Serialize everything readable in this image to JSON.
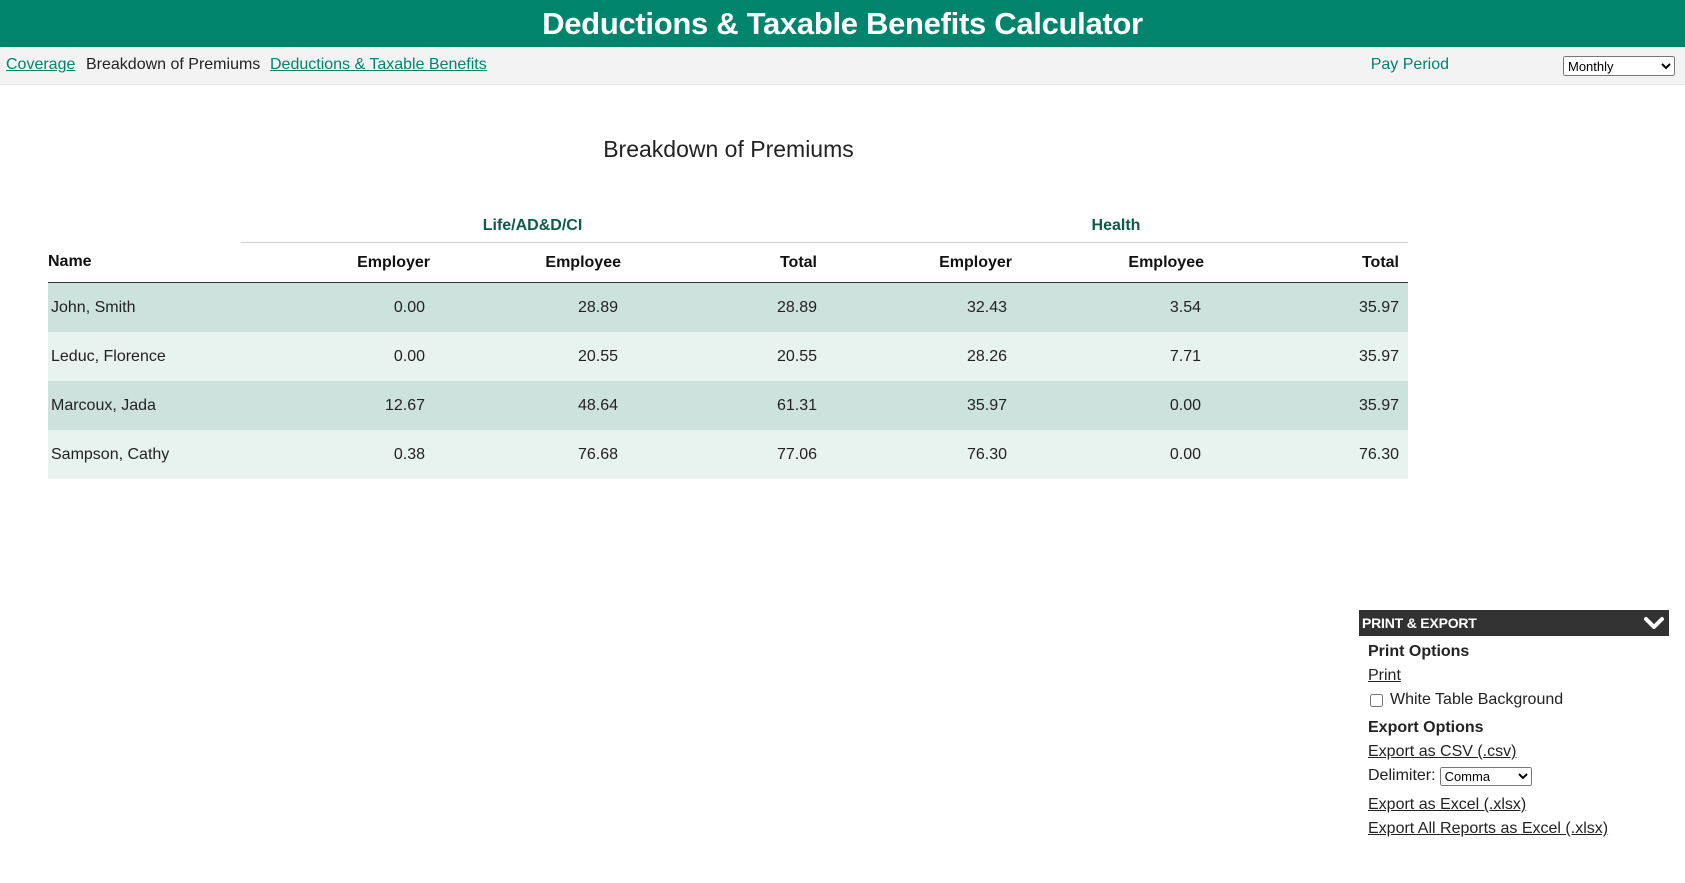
{
  "header": {
    "title": "Deductions & Taxable Benefits Calculator"
  },
  "nav": {
    "links": [
      {
        "label": "Coverage",
        "active": false
      },
      {
        "label": "Breakdown of Premiums",
        "active": true
      },
      {
        "label": "Deductions & Taxable Benefits",
        "active": false
      }
    ],
    "pay_period_label": "Pay Period",
    "pay_period_value": "Monthly"
  },
  "page": {
    "title": "Breakdown of Premiums"
  },
  "table": {
    "groups": [
      "Life/AD&D/CI",
      "Health"
    ],
    "columns": {
      "name": "Name",
      "life_employer": "Employer",
      "life_employee": "Employee",
      "life_total": "Total",
      "health_employer": "Employer",
      "health_employee": "Employee",
      "health_total": "Total"
    },
    "rows": [
      {
        "name": "John, Smith",
        "life_employer": "0.00",
        "life_employee": "28.89",
        "life_total": "28.89",
        "health_employer": "32.43",
        "health_employee": "3.54",
        "health_total": "35.97"
      },
      {
        "name": "Leduc, Florence",
        "life_employer": "0.00",
        "life_employee": "20.55",
        "life_total": "20.55",
        "health_employer": "28.26",
        "health_employee": "7.71",
        "health_total": "35.97"
      },
      {
        "name": "Marcoux, Jada",
        "life_employer": "12.67",
        "life_employee": "48.64",
        "life_total": "61.31",
        "health_employer": "35.97",
        "health_employee": "0.00",
        "health_total": "35.97"
      },
      {
        "name": "Sampson, Cathy",
        "life_employer": "0.38",
        "life_employee": "76.68",
        "life_total": "77.06",
        "health_employer": "76.30",
        "health_employee": "0.00",
        "health_total": "76.30"
      }
    ]
  },
  "print_export": {
    "title": "PRINT & EXPORT",
    "collapse_icon": "chevron-down-icon",
    "print_options_label": "Print Options",
    "print_link": "Print",
    "white_bg_label": "White Table Background",
    "white_bg_checked": false,
    "export_options_label": "Export Options",
    "export_csv_link": "Export as CSV (.csv)",
    "delimiter_label": "Delimiter:",
    "delimiter_value": "Comma",
    "export_excel_link": "Export as Excel (.xlsx)",
    "export_all_link": "Export All Reports as Excel (.xlsx)"
  },
  "colors": {
    "brand": "#00846c",
    "row_odd": "#cde2dd",
    "row_even": "#e8f2ef",
    "panel_header": "#323232"
  }
}
